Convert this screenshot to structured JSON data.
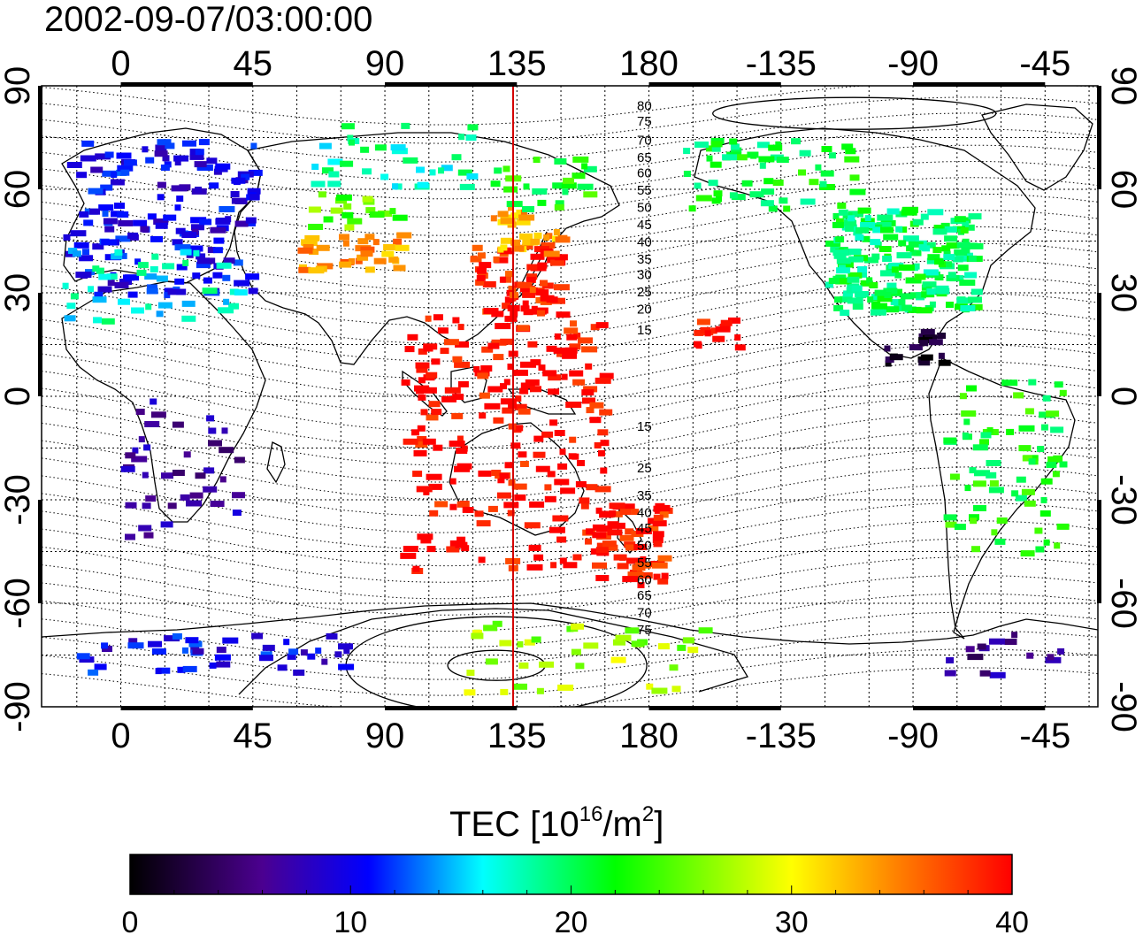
{
  "timestamp": "2002-09-07/03:00:00",
  "axes": {
    "x_ticks": [
      "0",
      "45",
      "90",
      "135",
      "180",
      "-135",
      "-90",
      "-45"
    ],
    "y_ticks": [
      "90",
      "60",
      "30",
      "0",
      "-30",
      "-60",
      "-90"
    ]
  },
  "contour_labels": [
    "80",
    "75",
    "70",
    "65",
    "60",
    "55",
    "50",
    "45",
    "40",
    "35",
    "30",
    "25",
    "20",
    "15",
    "15",
    "25",
    "35",
    "40",
    "45",
    "50",
    "55",
    "60",
    "65",
    "70",
    "75"
  ],
  "colorbar": {
    "title_prefix": "TEC  [10",
    "title_exp": "16",
    "title_mid": "/m",
    "title_exp2": "2",
    "title_suffix": "]",
    "tick_labels": [
      "0",
      "10",
      "20",
      "30",
      "40"
    ],
    "min": 0,
    "max": 40
  },
  "colors": {
    "ramp": [
      "#000000",
      "#4b0090",
      "#0000ff",
      "#00ffff",
      "#00ff00",
      "#ffff00",
      "#ff0000"
    ],
    "meridian_line": "#d40000"
  },
  "chart_data": {
    "type": "heatmap",
    "title": "2002-09-07/03:00:00",
    "colorbar_label": "TEC [10^16/m^2]",
    "value_range": [
      0,
      40
    ],
    "xlim_longitude": [
      -27,
      333
    ],
    "ylim_latitude": [
      -90,
      90
    ],
    "highlighted_meridian": 135,
    "regions": [
      {
        "lon": [
          -20,
          45
        ],
        "lat": [
          30,
          75
        ],
        "tec": 10,
        "n": 170
      },
      {
        "lon": [
          -20,
          40
        ],
        "lat": [
          22,
          45
        ],
        "tec": 17,
        "n": 40
      },
      {
        "lon": [
          60,
          95
        ],
        "lat": [
          37,
          48
        ],
        "tec": 34,
        "n": 35
      },
      {
        "lon": [
          60,
          95
        ],
        "lat": [
          49,
          60
        ],
        "tec": 25,
        "n": 18
      },
      {
        "lon": [
          60,
          120
        ],
        "lat": [
          60,
          80
        ],
        "tec": 18,
        "n": 35
      },
      {
        "lon": 85,
        "lat": [
          -90,
          90
        ],
        "tec": null,
        "n": 0
      },
      {
        "lon": [
          118,
          148
        ],
        "lat": [
          25,
          45
        ],
        "tec": 39,
        "n": 70
      },
      {
        "lon": [
          125,
          150
        ],
        "lat": [
          42,
          56
        ],
        "tec": 33,
        "n": 30
      },
      {
        "lon": [
          125,
          160
        ],
        "lat": [
          55,
          70
        ],
        "tec": 22,
        "n": 25
      },
      {
        "lon": [
          95,
          165
        ],
        "lat": [
          -50,
          25
        ],
        "tec": 40,
        "n": 220
      },
      {
        "lon": [
          160,
          185
        ],
        "lat": [
          -55,
          -30
        ],
        "tec": 39,
        "n": 60
      },
      {
        "lon": [
          195,
          210
        ],
        "lat": [
          15,
          25
        ],
        "tec": 40,
        "n": 15
      },
      {
        "lon": [
          190,
          250
        ],
        "lat": [
          55,
          75
        ],
        "tec": 21,
        "n": 60
      },
      {
        "lon": [
          240,
          290
        ],
        "lat": [
          25,
          55
        ],
        "tec": 20,
        "n": 200
      },
      {
        "lon": [
          260,
          280
        ],
        "lat": [
          10,
          20
        ],
        "tec": 1,
        "n": 20
      },
      {
        "lon": [
          280,
          320
        ],
        "lat": [
          -45,
          5
        ],
        "tec": 22,
        "n": 70
      },
      {
        "lon": [
          0,
          40
        ],
        "lat": [
          -40,
          0
        ],
        "tec": 7,
        "n": 40
      },
      {
        "lon": [
          -20,
          80
        ],
        "lat": [
          -80,
          -68
        ],
        "tec": 10,
        "n": 45
      },
      {
        "lon": [
          115,
          200
        ],
        "lat": [
          -85,
          -65
        ],
        "tec": 27,
        "n": 40
      },
      {
        "lon": [
          280,
          320
        ],
        "lat": [
          -80,
          -65
        ],
        "tec": 6,
        "n": 15
      }
    ]
  }
}
